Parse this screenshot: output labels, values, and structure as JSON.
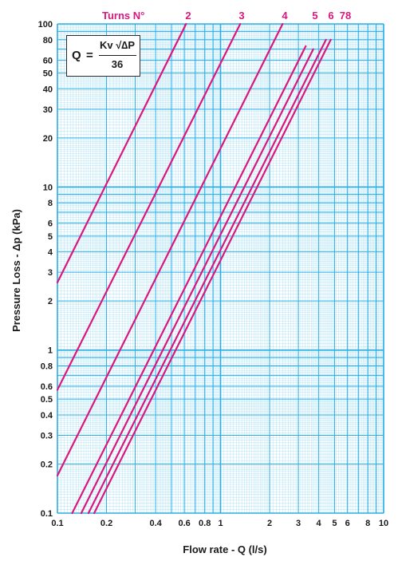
{
  "colors": {
    "curve": "#d9177f",
    "grid_major": "#29aee6",
    "grid_minor": "#a9e0f5",
    "text": "#1a1a1a"
  },
  "formula": {
    "lhs": "Q",
    "equals": "=",
    "numerator": "Kv √∆P",
    "denominator": "36"
  },
  "chart_data": {
    "type": "line",
    "xscale": "log",
    "yscale": "log",
    "xlim": [
      0.1,
      10
    ],
    "ylim": [
      0.1,
      100
    ],
    "xlabel": "Flow rate - Q (l/s)",
    "ylabel": "Pressure Loss - Δp (kPa)",
    "x_ticks": [
      "0.1",
      "0.2",
      "0.4",
      "0.6",
      "0.8",
      "1",
      "2",
      "3",
      "4",
      "5",
      "6",
      "8",
      "10"
    ],
    "y_ticks": [
      "0.1",
      "0.2",
      "0.3",
      "0.4",
      "0.5",
      "0.6",
      "0.8",
      "1",
      "2",
      "3",
      "4",
      "5",
      "6",
      "8",
      "10",
      "20",
      "30",
      "40",
      "50",
      "60",
      "80",
      "100"
    ],
    "grid": true,
    "series_header": "Turns N°",
    "series": [
      {
        "name": "2",
        "x": [
          0.1,
          0.615
        ],
        "y": [
          2.6,
          100
        ]
      },
      {
        "name": "3",
        "x": [
          0.1,
          1.32
        ],
        "y": [
          0.57,
          100
        ]
      },
      {
        "name": "4",
        "x": [
          0.1,
          2.4
        ],
        "y": [
          0.17,
          100
        ]
      },
      {
        "name": "5",
        "x": [
          0.1232,
          3.33
        ],
        "y": [
          0.1,
          73
        ]
      },
      {
        "name": "6",
        "x": [
          0.14,
          3.7
        ],
        "y": [
          0.1,
          70
        ]
      },
      {
        "name": "7",
        "x": [
          0.155,
          4.43
        ],
        "y": [
          0.1,
          80
        ]
      },
      {
        "name": "8",
        "x": [
          0.168,
          4.74
        ],
        "y": [
          0.1,
          80
        ]
      }
    ],
    "series_labels": [
      "2",
      "3",
      "4",
      "5",
      "6",
      "78"
    ]
  }
}
